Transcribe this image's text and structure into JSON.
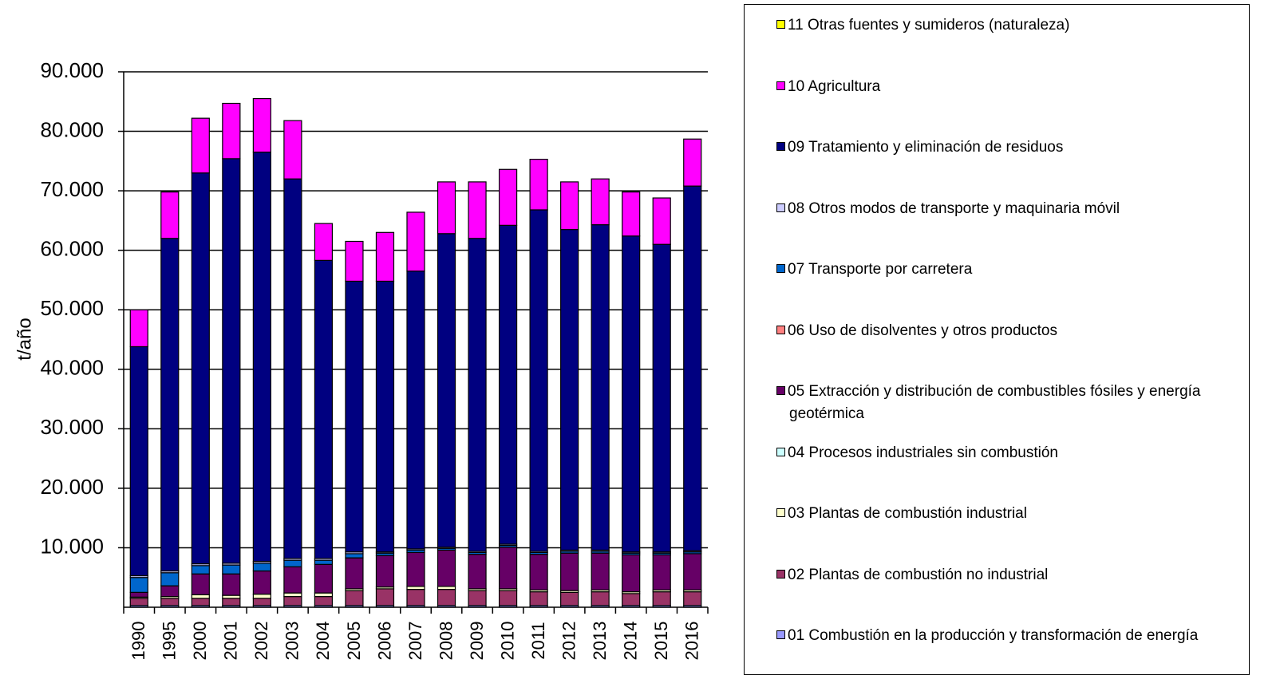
{
  "chart_data": {
    "type": "stacked_bar",
    "y_label": "t/año",
    "categories": [
      "1990",
      "1995",
      "2000",
      "2001",
      "2002",
      "2003",
      "2004",
      "2005",
      "2006",
      "2007",
      "2008",
      "2009",
      "2010",
      "2011",
      "2012",
      "2013",
      "2014",
      "2015",
      "2016"
    ],
    "ylim": [
      0,
      90000
    ],
    "yticks": [
      {
        "value": 10000,
        "label": "10.000"
      },
      {
        "value": 20000,
        "label": "20.000"
      },
      {
        "value": 30000,
        "label": "30.000"
      },
      {
        "value": 40000,
        "label": "40.000"
      },
      {
        "value": 50000,
        "label": "50.000"
      },
      {
        "value": 60000,
        "label": "60.000"
      },
      {
        "value": 70000,
        "label": "70.000"
      },
      {
        "value": 80000,
        "label": "80.000"
      },
      {
        "value": 90000,
        "label": "90.000"
      }
    ],
    "grid": true,
    "legend": "right",
    "series": [
      {
        "name": "01 Combustión en la producción y transformación de energía",
        "color": "#9999ff",
        "values": [
          300,
          300,
          300,
          300,
          300,
          300,
          300,
          300,
          300,
          300,
          300,
          300,
          300,
          300,
          300,
          300,
          300,
          300,
          300
        ]
      },
      {
        "name": "02 Plantas de combustión no industrial",
        "color": "#993366",
        "values": [
          1200,
          1200,
          1200,
          1200,
          1200,
          1500,
          1500,
          2500,
          2800,
          2700,
          2700,
          2500,
          2500,
          2300,
          2200,
          2300,
          2000,
          2300,
          2300
        ]
      },
      {
        "name": "03 Plantas de combustión industrial",
        "color": "#ffffcc",
        "values": [
          200,
          300,
          600,
          500,
          700,
          600,
          600,
          300,
          300,
          500,
          500,
          300,
          300,
          300,
          300,
          300,
          300,
          300,
          300
        ]
      },
      {
        "name": "04 Procesos industriales sin combustión",
        "color": "#ccffff",
        "values": [
          0,
          0,
          0,
          0,
          0,
          0,
          0,
          0,
          0,
          0,
          0,
          0,
          0,
          0,
          0,
          0,
          0,
          0,
          0
        ]
      },
      {
        "name": "05 Extracción y distribución de combustibles fósiles y energía geotérmica",
        "color": "#660066",
        "values": [
          800,
          1800,
          3500,
          3600,
          3900,
          4400,
          4800,
          5200,
          5300,
          5700,
          6100,
          5800,
          7000,
          6000,
          6300,
          6200,
          6200,
          5900,
          6100
        ]
      },
      {
        "name": "06 Uso de disolventes y otros productos",
        "color": "#ff8080",
        "values": [
          0,
          0,
          0,
          0,
          0,
          0,
          0,
          0,
          0,
          0,
          0,
          0,
          0,
          0,
          0,
          0,
          0,
          0,
          0
        ]
      },
      {
        "name": "07 Transporte por carretera",
        "color": "#0066cc",
        "values": [
          2500,
          2200,
          1400,
          1500,
          1300,
          1100,
          700,
          700,
          400,
          400,
          300,
          300,
          300,
          300,
          300,
          300,
          300,
          300,
          300
        ]
      },
      {
        "name": "08 Otros modos de transporte y maquinaria móvil",
        "color": "#ccccff",
        "values": [
          300,
          300,
          300,
          300,
          300,
          300,
          300,
          300,
          200,
          200,
          200,
          200,
          200,
          200,
          200,
          200,
          200,
          200,
          200
        ]
      },
      {
        "name": "09 Tratamiento y eliminación de residuos",
        "color": "#000080",
        "values": [
          38500,
          55900,
          65700,
          68000,
          68800,
          63800,
          50100,
          45500,
          45500,
          46700,
          52700,
          52600,
          53600,
          57400,
          53900,
          54700,
          53100,
          51700,
          61300
        ]
      },
      {
        "name": "10 Agricultura",
        "color": "#ff00ff",
        "values": [
          6200,
          7800,
          9200,
          9300,
          9000,
          9800,
          6200,
          6700,
          8200,
          9900,
          8700,
          9500,
          9400,
          8500,
          8000,
          7700,
          7400,
          7800,
          7900
        ]
      },
      {
        "name": "11 Otras fuentes y sumideros (naturaleza)",
        "color": "#ffff00",
        "values": [
          0,
          0,
          0,
          0,
          0,
          0,
          0,
          0,
          0,
          0,
          0,
          0,
          0,
          0,
          0,
          0,
          0,
          0,
          0
        ]
      }
    ]
  }
}
